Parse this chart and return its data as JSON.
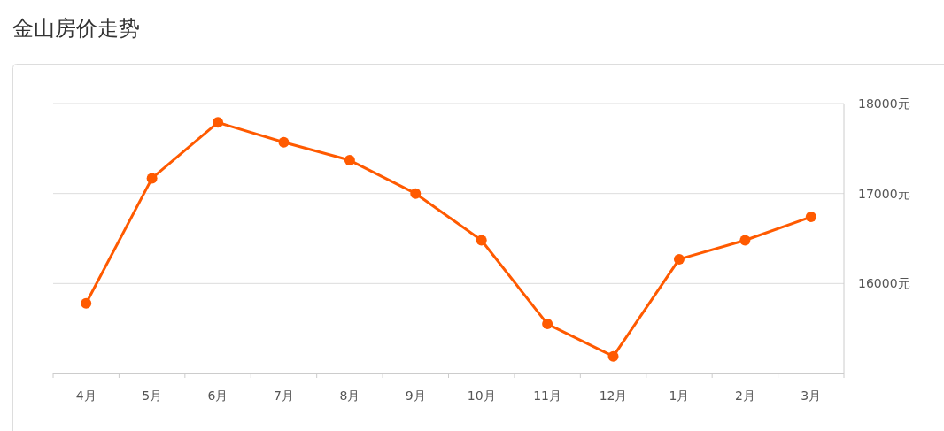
{
  "chart_data": {
    "type": "line",
    "title": "金山房价走势",
    "categories": [
      "4月",
      "5月",
      "6月",
      "7月",
      "8月",
      "9月",
      "10月",
      "11月",
      "12月",
      "1月",
      "2月",
      "3月"
    ],
    "series": [
      {
        "color": "#ff5a00",
        "values": [
          15780,
          17170,
          17790,
          17570,
          17370,
          17000,
          16480,
          15550,
          15190,
          16270,
          16480,
          16740
        ]
      }
    ],
    "ylim": [
      15000,
      18000
    ],
    "yticks": [
      {
        "value": 15000,
        "label": null
      },
      {
        "value": 16000,
        "label": "16000元"
      },
      {
        "value": 17000,
        "label": "17000元"
      },
      {
        "value": 18000,
        "label": "18000元"
      }
    ],
    "grid": "y",
    "marker": "circle",
    "line_style": "solid"
  }
}
